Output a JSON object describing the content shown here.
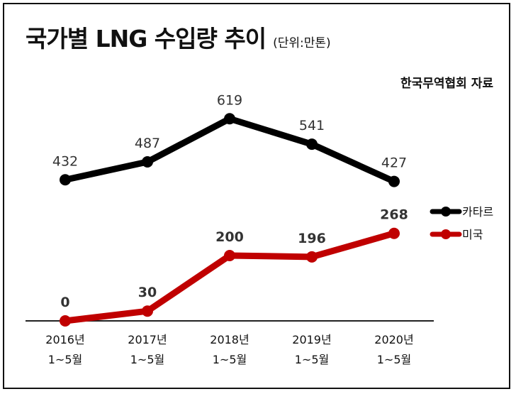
{
  "header": {
    "title": "국가별 LNG 수입량 추이",
    "unit": "(단위:만톤)",
    "source": "한국무역협회 자료"
  },
  "chart_data": {
    "type": "line",
    "title": "국가별 LNG 수입량 추이",
    "unit": "(단위:만톤)",
    "categories": [
      [
        "2016년",
        "1~5월"
      ],
      [
        "2017년",
        "1~5월"
      ],
      [
        "2018년",
        "1~5월"
      ],
      [
        "2019년",
        "1~5월"
      ],
      [
        "2020년",
        "1~5월"
      ]
    ],
    "series": [
      {
        "name": "카타르",
        "values": [
          432,
          487,
          619,
          541,
          427
        ],
        "color": "#000000"
      },
      {
        "name": "미국",
        "values": [
          0,
          30,
          200,
          196,
          268
        ],
        "color": "#c00000"
      }
    ],
    "ylim": [
      0,
      800
    ],
    "grid": false,
    "legend": "right",
    "source": "한국무역협회 자료"
  }
}
